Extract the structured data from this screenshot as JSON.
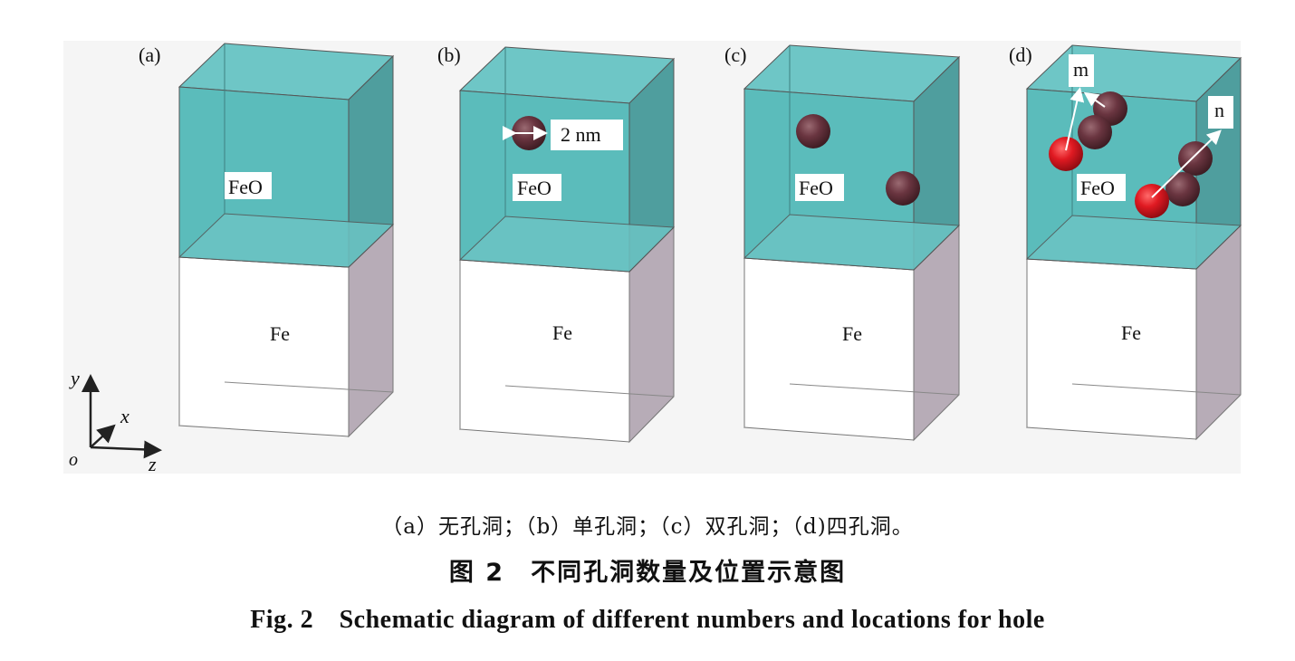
{
  "panels": [
    {
      "id": "a",
      "label": "(a)",
      "oxide_label": "FeO",
      "metal_label": "Fe"
    },
    {
      "id": "b",
      "label": "(b)",
      "oxide_label": "FeO",
      "metal_label": "Fe",
      "size_annotation": "2 nm"
    },
    {
      "id": "c",
      "label": "(c)",
      "oxide_label": "FeO",
      "metal_label": "Fe"
    },
    {
      "id": "d",
      "label": "(d)",
      "oxide_label": "FeO",
      "metal_label": "Fe",
      "arrow_labels": [
        "m",
        "n"
      ]
    }
  ],
  "axes": {
    "y": "y",
    "x": "x",
    "z": "z",
    "origin": "o"
  },
  "captions": {
    "subtitle": "（a）无孔洞；（b）单孔洞；（c）双孔洞；（d)四孔洞。",
    "title_cn": "图 2　不同孔洞数量及位置示意图",
    "title_en": "Fig. 2　Schematic diagram of different numbers and locations for hole"
  },
  "colors": {
    "oxide": "#5bbcbb",
    "oxide_top": "#6ec6c6",
    "metal_side": "#c9bec8",
    "hole_dark": "#5a2d35",
    "hole_red": "#d01522",
    "background": "#f5f5f5"
  }
}
